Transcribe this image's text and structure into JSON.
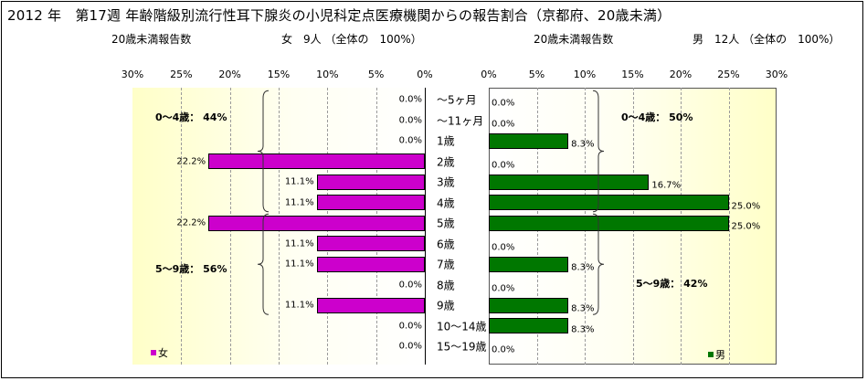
{
  "chart_data": {
    "type": "bar",
    "orientation": "horizontal-pyramid",
    "title": "2012 年　第17週 年齢階級別流行性耳下腺炎の小児科定点医療機関からの報告割合（京都府、20歳未満）",
    "categories": [
      "～5ヶ月",
      "～11ヶ月",
      "1歳",
      "2歳",
      "3歳",
      "4歳",
      "5歳",
      "6歳",
      "7歳",
      "8歳",
      "9歳",
      "10～14歳",
      "15～19歳"
    ],
    "axis_ticks": [
      "30%",
      "25%",
      "20%",
      "15%",
      "10%",
      "5%",
      "0%"
    ],
    "axis_ticks_right": [
      "0%",
      "5%",
      "10%",
      "15%",
      "20%",
      "25%",
      "30%"
    ],
    "xlim": [
      0,
      30
    ],
    "series": [
      {
        "name": "女",
        "color": "#cc00cc",
        "values": [
          0.0,
          0.0,
          0.0,
          22.2,
          11.1,
          11.1,
          22.2,
          11.1,
          11.1,
          0.0,
          11.1,
          0.0,
          0.0
        ],
        "labels": [
          "0.0%",
          "0.0%",
          "0.0%",
          "22.2%",
          "11.1%",
          "11.1%",
          "22.2%",
          "11.1%",
          "11.1%",
          "0.0%",
          "11.1%",
          "0.0%",
          "0.0%"
        ],
        "subtitle_left": "20歳未満報告数",
        "subtitle_right": "女　9人 （全体の　100%）",
        "groups": [
          {
            "label": "0～4歳： 44%",
            "from": 0,
            "to": 5
          },
          {
            "label": "5～9歳： 56%",
            "from": 6,
            "to": 10
          }
        ]
      },
      {
        "name": "男",
        "color": "#007700",
        "values": [
          0.0,
          0.0,
          8.3,
          0.0,
          16.7,
          25.0,
          25.0,
          0.0,
          8.3,
          0.0,
          8.3,
          8.3,
          0.0
        ],
        "labels": [
          "0.0%",
          "0.0%",
          "8.3%",
          "0.0%",
          "16.7%",
          "25.0%",
          "25.0%",
          "0.0%",
          "8.3%",
          "0.0%",
          "8.3%",
          "8.3%",
          "0.0%"
        ],
        "subtitle_left": "20歳未満報告数",
        "subtitle_right": "男　12人 （全体の　100%）",
        "groups": [
          {
            "label": "0～4歳： 50%",
            "from": 0,
            "to": 5
          },
          {
            "label": "5～9歳： 42%",
            "from": 6,
            "to": 10
          }
        ]
      }
    ],
    "grid": true,
    "legend": [
      "女",
      "男"
    ]
  }
}
